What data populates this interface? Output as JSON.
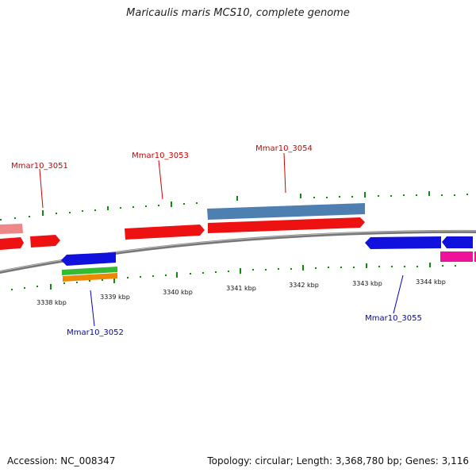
{
  "title": "Maricaulis maris MCS10, complete genome",
  "footer": {
    "accession": "Accession: NC_008347",
    "summary": "Topology: circular; Length: 3,368,780 bp; Genes: 3,116"
  },
  "scale_labels": [
    "3338 kbp",
    "3339 kbp",
    "3340 kbp",
    "3341 kbp",
    "3342 kbp",
    "3343 kbp",
    "3344 kbp"
  ],
  "gene_labels": {
    "mmar10_3051": "Mmar10_3051",
    "mmar10_3052": "Mmar10_3052",
    "mmar10_3053": "Mmar10_3053",
    "mmar10_3054": "Mmar10_3054",
    "mmar10_3055": "Mmar10_3055"
  },
  "colors": {
    "forward_gene": "#ee1111",
    "reverse_gene": "#1111dd",
    "pseudo_light": "#ee8888",
    "steel_feature": "#4d7fb0",
    "pink_feature": "#ee1199",
    "green_feature": "#33bb33",
    "orange_feature": "#ee8800",
    "tick_green": "#118811",
    "backbone": "#777777"
  }
}
